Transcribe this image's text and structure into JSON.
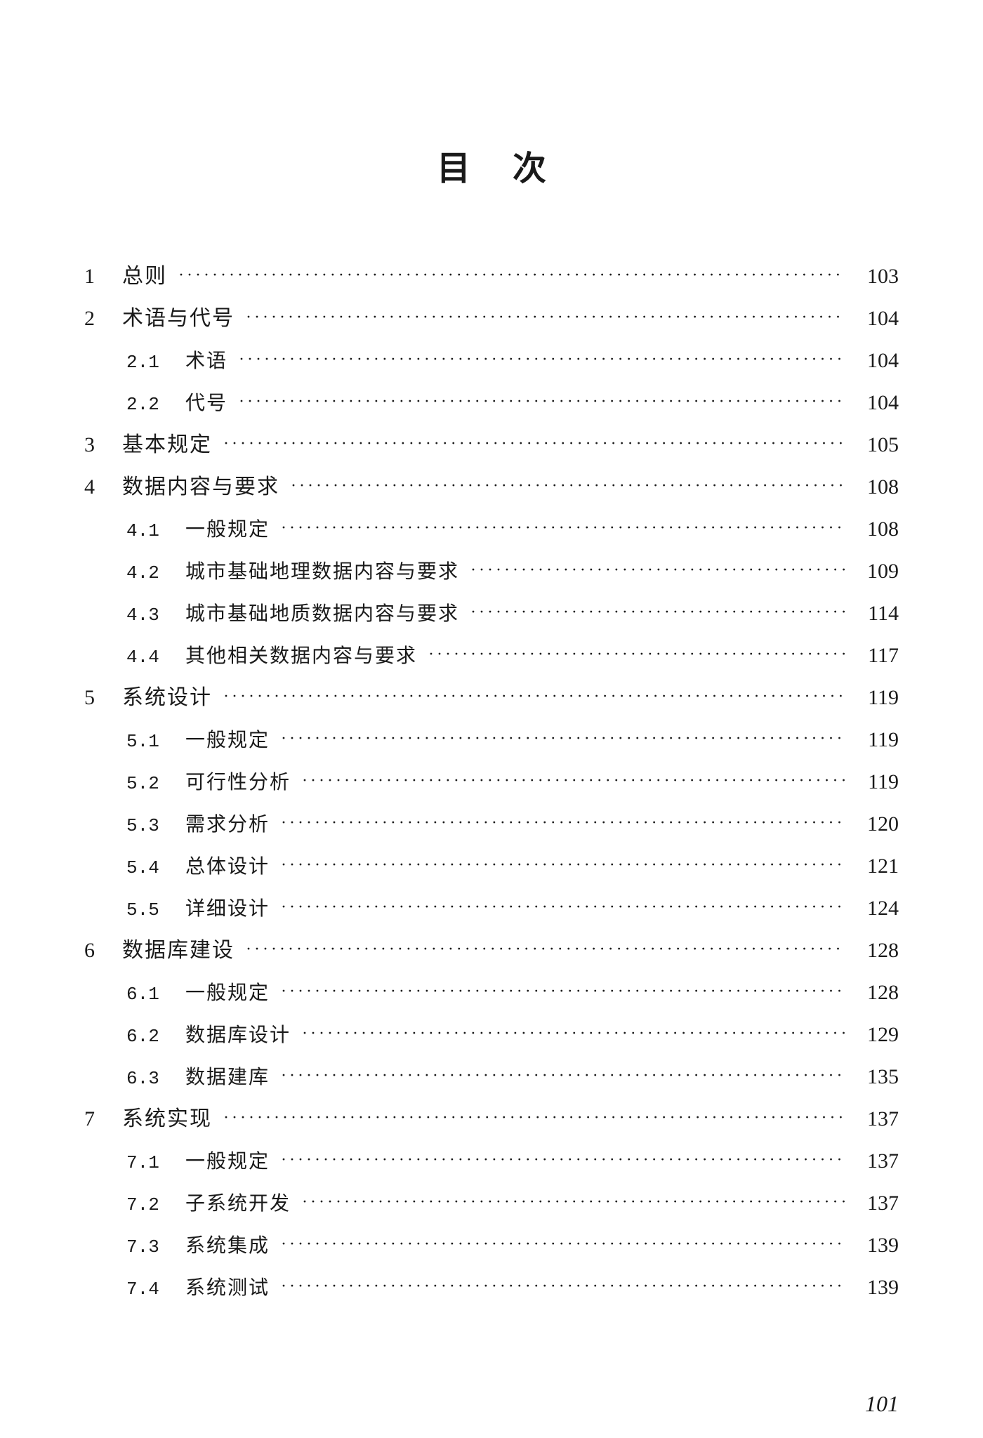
{
  "title": "目次",
  "page_number": "101",
  "colors": {
    "text": "#1a1a1a",
    "background": "#ffffff"
  },
  "typography": {
    "title_fontsize": 48,
    "main_entry_fontsize": 30,
    "sub_entry_fontsize": 28,
    "page_num_fontsize": 30,
    "font_family": "SimSun"
  },
  "entries": [
    {
      "level": 1,
      "num": "1",
      "title": "总则",
      "page": "103"
    },
    {
      "level": 1,
      "num": "2",
      "title": "术语与代号",
      "page": "104"
    },
    {
      "level": 2,
      "num": "2.1",
      "title": "术语",
      "page": "104"
    },
    {
      "level": 2,
      "num": "2.2",
      "title": "代号",
      "page": "104"
    },
    {
      "level": 1,
      "num": "3",
      "title": "基本规定",
      "page": "105"
    },
    {
      "level": 1,
      "num": "4",
      "title": "数据内容与要求",
      "page": "108"
    },
    {
      "level": 2,
      "num": "4.1",
      "title": "一般规定",
      "page": "108"
    },
    {
      "level": 2,
      "num": "4.2",
      "title": "城市基础地理数据内容与要求",
      "page": "109"
    },
    {
      "level": 2,
      "num": "4.3",
      "title": "城市基础地质数据内容与要求",
      "page": "114"
    },
    {
      "level": 2,
      "num": "4.4",
      "title": "其他相关数据内容与要求",
      "page": "117"
    },
    {
      "level": 1,
      "num": "5",
      "title": "系统设计",
      "page": "119"
    },
    {
      "level": 2,
      "num": "5.1",
      "title": "一般规定",
      "page": "119"
    },
    {
      "level": 2,
      "num": "5.2",
      "title": "可行性分析",
      "page": "119"
    },
    {
      "level": 2,
      "num": "5.3",
      "title": "需求分析",
      "page": "120"
    },
    {
      "level": 2,
      "num": "5.4",
      "title": "总体设计",
      "page": "121"
    },
    {
      "level": 2,
      "num": "5.5",
      "title": "详细设计",
      "page": "124"
    },
    {
      "level": 1,
      "num": "6",
      "title": "数据库建设",
      "page": "128"
    },
    {
      "level": 2,
      "num": "6.1",
      "title": "一般规定",
      "page": "128"
    },
    {
      "level": 2,
      "num": "6.2",
      "title": "数据库设计",
      "page": "129"
    },
    {
      "level": 2,
      "num": "6.3",
      "title": "数据建库",
      "page": "135"
    },
    {
      "level": 1,
      "num": "7",
      "title": "系统实现",
      "page": "137"
    },
    {
      "level": 2,
      "num": "7.1",
      "title": "一般规定",
      "page": "137"
    },
    {
      "level": 2,
      "num": "7.2",
      "title": "子系统开发",
      "page": "137"
    },
    {
      "level": 2,
      "num": "7.3",
      "title": "系统集成",
      "page": "139"
    },
    {
      "level": 2,
      "num": "7.4",
      "title": "系统测试",
      "page": "139"
    }
  ]
}
